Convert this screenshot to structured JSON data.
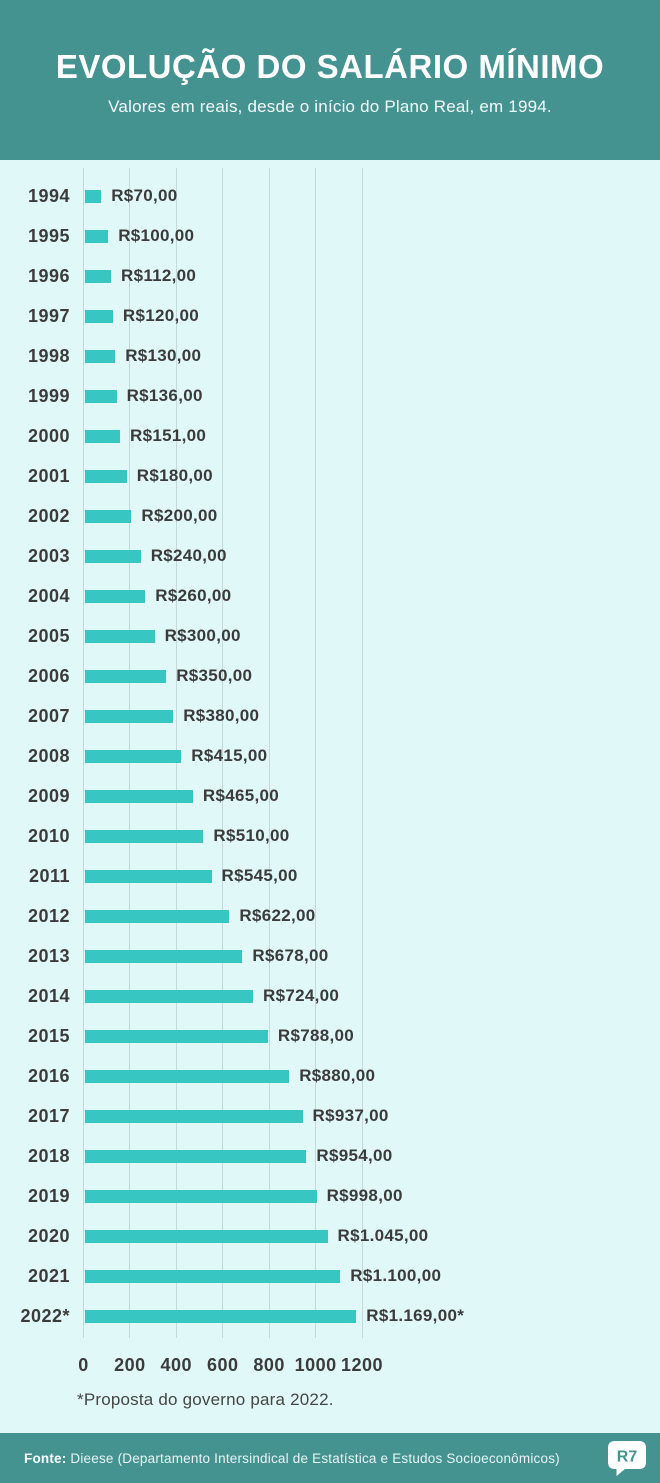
{
  "header": {
    "title": "EVOLUÇÃO DO SALÁRIO MÍNIMO",
    "subtitle": "Valores em reais, desde o início do Plano Real, em 1994."
  },
  "chart_data": {
    "type": "bar",
    "orientation": "horizontal",
    "categories": [
      "1994",
      "1995",
      "1996",
      "1997",
      "1998",
      "1999",
      "2000",
      "2001",
      "2002",
      "2003",
      "2004",
      "2005",
      "2006",
      "2007",
      "2008",
      "2009",
      "2010",
      "2011",
      "2012",
      "2013",
      "2014",
      "2015",
      "2016",
      "2017",
      "2018",
      "2019",
      "2020",
      "2021",
      "2022*"
    ],
    "values": [
      70,
      100,
      112,
      120,
      130,
      136,
      151,
      180,
      200,
      240,
      260,
      300,
      350,
      380,
      415,
      465,
      510,
      545,
      622,
      678,
      724,
      788,
      880,
      937,
      954,
      998,
      1045,
      1100,
      1169
    ],
    "value_labels": [
      "R$70,00",
      "R$100,00",
      "R$112,00",
      "R$120,00",
      "R$130,00",
      "R$136,00",
      "R$151,00",
      "R$180,00",
      "R$200,00",
      "R$240,00",
      "R$260,00",
      "R$300,00",
      "R$350,00",
      "R$380,00",
      "R$415,00",
      "R$465,00",
      "R$510,00",
      "R$545,00",
      "R$622,00",
      "R$678,00",
      "R$724,00",
      "R$788,00",
      "R$880,00",
      "R$937,00",
      "R$954,00",
      "R$998,00",
      "R$1.045,00",
      "R$1.100,00",
      "R$1.169,00*"
    ],
    "x_ticks": [
      0,
      200,
      400,
      600,
      800,
      1000,
      1200
    ],
    "xlim": [
      0,
      1200
    ],
    "grid": true,
    "legend": false,
    "footnote": "*Proposta do governo para 2022."
  },
  "footer": {
    "source_label": "Fonte:",
    "source_text": "Dieese (Departamento Intersindical de Estatística e Estudos Socioeconômicos)",
    "logo_text": "R7"
  },
  "colors": {
    "header_footer_teal": "#449391",
    "chart_background": "#e1f8f8",
    "bar_teal": "#38c6c3",
    "text_dark": "#3b3b3b",
    "gridline": "#c3d9da"
  }
}
